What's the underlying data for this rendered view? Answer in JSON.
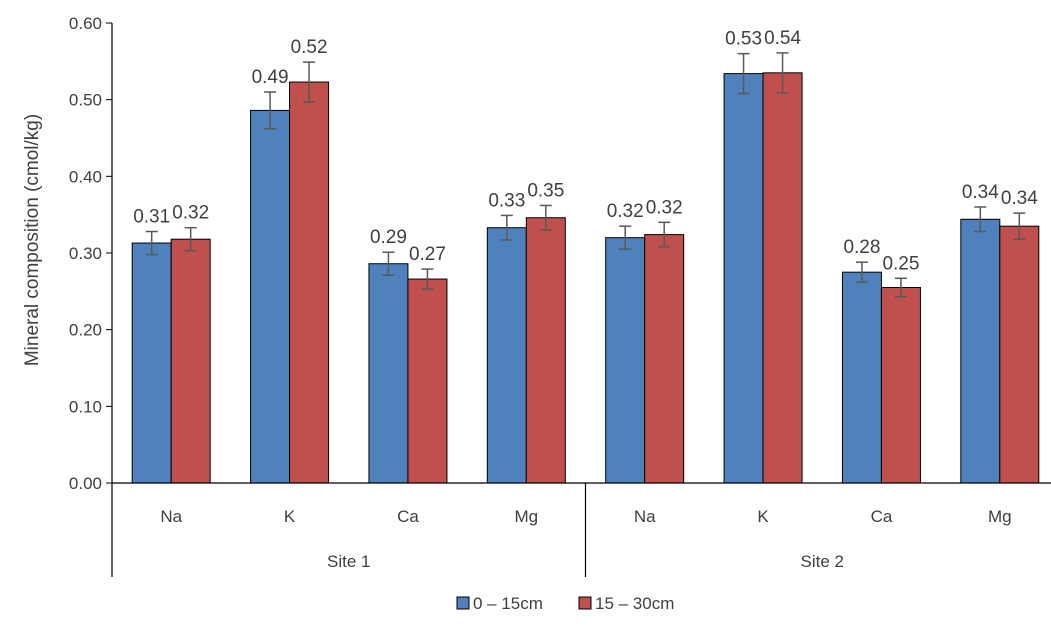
{
  "chart_data": {
    "type": "bar",
    "ylabel": "Mineral composition (cmol/kg)",
    "ylim": [
      0,
      0.6
    ],
    "yticks": [
      "0.00",
      "0.10",
      "0.20",
      "0.30",
      "0.40",
      "0.50",
      "0.60"
    ],
    "grid": false,
    "legend_position": "bottom",
    "groups": [
      {
        "name": "Site 1",
        "categories": [
          "Na",
          "K",
          "Ca",
          "Mg"
        ]
      },
      {
        "name": "Site 2",
        "categories": [
          "Na",
          "K",
          "Ca",
          "Mg"
        ]
      }
    ],
    "series": [
      {
        "name": "0 – 15cm",
        "color": "#4f81bd",
        "values": [
          0.313,
          0.486,
          0.286,
          0.333,
          0.32,
          0.534,
          0.275,
          0.344
        ],
        "errors": [
          0.015,
          0.024,
          0.015,
          0.016,
          0.015,
          0.026,
          0.013,
          0.016
        ],
        "labels": [
          "0.31",
          "0.49",
          "0.29",
          "0.33",
          "0.32",
          "0.53",
          "0.28",
          "0.34"
        ]
      },
      {
        "name": "15 – 30cm",
        "color": "#c0504d",
        "values": [
          0.318,
          0.523,
          0.266,
          0.346,
          0.324,
          0.535,
          0.255,
          0.335
        ],
        "errors": [
          0.015,
          0.026,
          0.013,
          0.016,
          0.016,
          0.026,
          0.012,
          0.017
        ],
        "labels": [
          "0.32",
          "0.52",
          "0.27",
          "0.35",
          "0.32",
          "0.54",
          "0.25",
          "0.34"
        ]
      }
    ]
  }
}
